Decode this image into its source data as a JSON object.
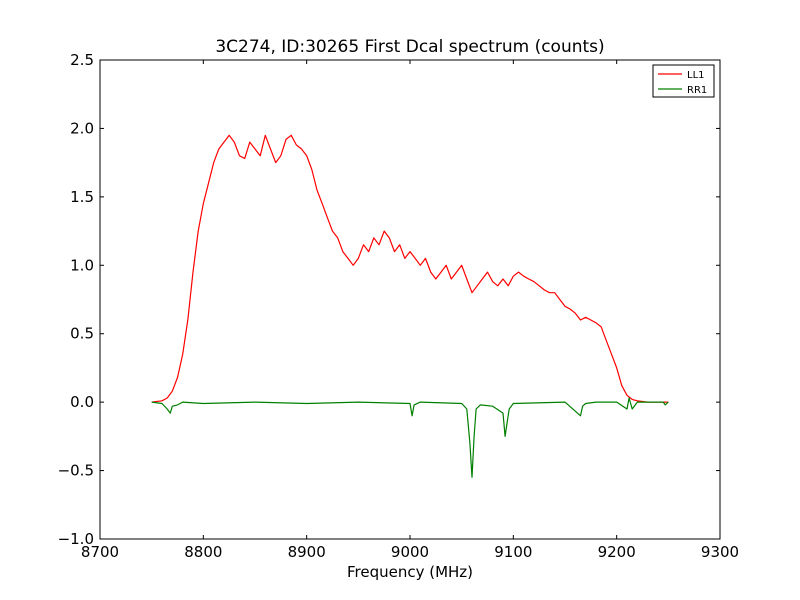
{
  "chart_data": {
    "type": "line",
    "title": "3C274, ID:30265 First Dcal spectrum (counts)",
    "xlabel": "Frequency (MHz)",
    "ylabel": "",
    "xlim": [
      8700,
      9300
    ],
    "ylim": [
      -1.0,
      2.5
    ],
    "x_ticks": [
      8700,
      8800,
      8900,
      9000,
      9100,
      9200,
      9300
    ],
    "x_tick_labels": [
      "8700",
      "8800",
      "8900",
      "9000",
      "9100",
      "9200",
      "9300"
    ],
    "y_ticks": [
      -1.0,
      -0.5,
      0.0,
      0.5,
      1.0,
      1.5,
      2.0,
      2.5
    ],
    "y_tick_labels": [
      "−1.0",
      "−0.5",
      "0.0",
      "0.5",
      "1.0",
      "1.5",
      "2.0",
      "2.5"
    ],
    "grid": false,
    "legend_position": "top-right",
    "series": [
      {
        "name": "LL1",
        "color": "#ff0000",
        "x": [
          8750,
          8760,
          8765,
          8770,
          8775,
          8780,
          8785,
          8790,
          8795,
          8800,
          8805,
          8810,
          8815,
          8820,
          8825,
          8830,
          8835,
          8840,
          8845,
          8850,
          8855,
          8860,
          8865,
          8870,
          8875,
          8880,
          8885,
          8890,
          8895,
          8900,
          8905,
          8910,
          8915,
          8920,
          8925,
          8930,
          8935,
          8940,
          8945,
          8950,
          8955,
          8960,
          8965,
          8970,
          8975,
          8980,
          8985,
          8990,
          8995,
          9000,
          9005,
          9010,
          9015,
          9020,
          9025,
          9030,
          9035,
          9040,
          9045,
          9050,
          9055,
          9060,
          9065,
          9070,
          9075,
          9080,
          9085,
          9090,
          9095,
          9100,
          9105,
          9110,
          9115,
          9120,
          9125,
          9130,
          9135,
          9140,
          9145,
          9150,
          9155,
          9160,
          9165,
          9170,
          9175,
          9180,
          9185,
          9190,
          9195,
          9200,
          9205,
          9210,
          9215,
          9220,
          9230,
          9240,
          9250
        ],
        "y": [
          0.0,
          0.01,
          0.03,
          0.08,
          0.18,
          0.35,
          0.6,
          0.95,
          1.25,
          1.45,
          1.6,
          1.75,
          1.85,
          1.9,
          1.95,
          1.9,
          1.8,
          1.78,
          1.9,
          1.85,
          1.8,
          1.95,
          1.85,
          1.75,
          1.8,
          1.92,
          1.95,
          1.88,
          1.85,
          1.8,
          1.7,
          1.55,
          1.45,
          1.35,
          1.25,
          1.2,
          1.1,
          1.05,
          1.0,
          1.05,
          1.15,
          1.1,
          1.2,
          1.15,
          1.25,
          1.2,
          1.1,
          1.15,
          1.05,
          1.1,
          1.05,
          1.0,
          1.05,
          0.95,
          0.9,
          0.95,
          1.0,
          0.9,
          0.95,
          1.0,
          0.9,
          0.8,
          0.85,
          0.9,
          0.95,
          0.88,
          0.85,
          0.9,
          0.85,
          0.92,
          0.95,
          0.92,
          0.9,
          0.88,
          0.85,
          0.82,
          0.8,
          0.8,
          0.75,
          0.7,
          0.68,
          0.65,
          0.6,
          0.62,
          0.6,
          0.58,
          0.55,
          0.45,
          0.35,
          0.25,
          0.12,
          0.05,
          0.02,
          0.01,
          0.0,
          0.0,
          0.0
        ]
      },
      {
        "name": "RR1",
        "color": "#008000",
        "x": [
          8750,
          8760,
          8765,
          8768,
          8770,
          8775,
          8780,
          8800,
          8850,
          8900,
          8950,
          9000,
          9002,
          9004,
          9010,
          9050,
          9055,
          9058,
          9060,
          9062,
          9064,
          9068,
          9080,
          9090,
          9092,
          9094,
          9096,
          9100,
          9150,
          9165,
          9167,
          9170,
          9180,
          9200,
          9210,
          9212,
          9215,
          9220,
          9230,
          9245,
          9247,
          9250
        ],
        "y": [
          0.0,
          -0.01,
          -0.05,
          -0.08,
          -0.03,
          -0.02,
          0.0,
          -0.01,
          0.0,
          -0.01,
          0.0,
          -0.01,
          -0.1,
          -0.02,
          0.0,
          -0.01,
          -0.05,
          -0.3,
          -0.55,
          -0.25,
          -0.05,
          -0.02,
          -0.03,
          -0.08,
          -0.25,
          -0.15,
          -0.05,
          -0.01,
          0.0,
          -0.1,
          -0.03,
          -0.01,
          0.0,
          0.0,
          -0.05,
          0.03,
          -0.05,
          0.0,
          0.0,
          0.0,
          -0.02,
          0.0
        ]
      }
    ]
  }
}
